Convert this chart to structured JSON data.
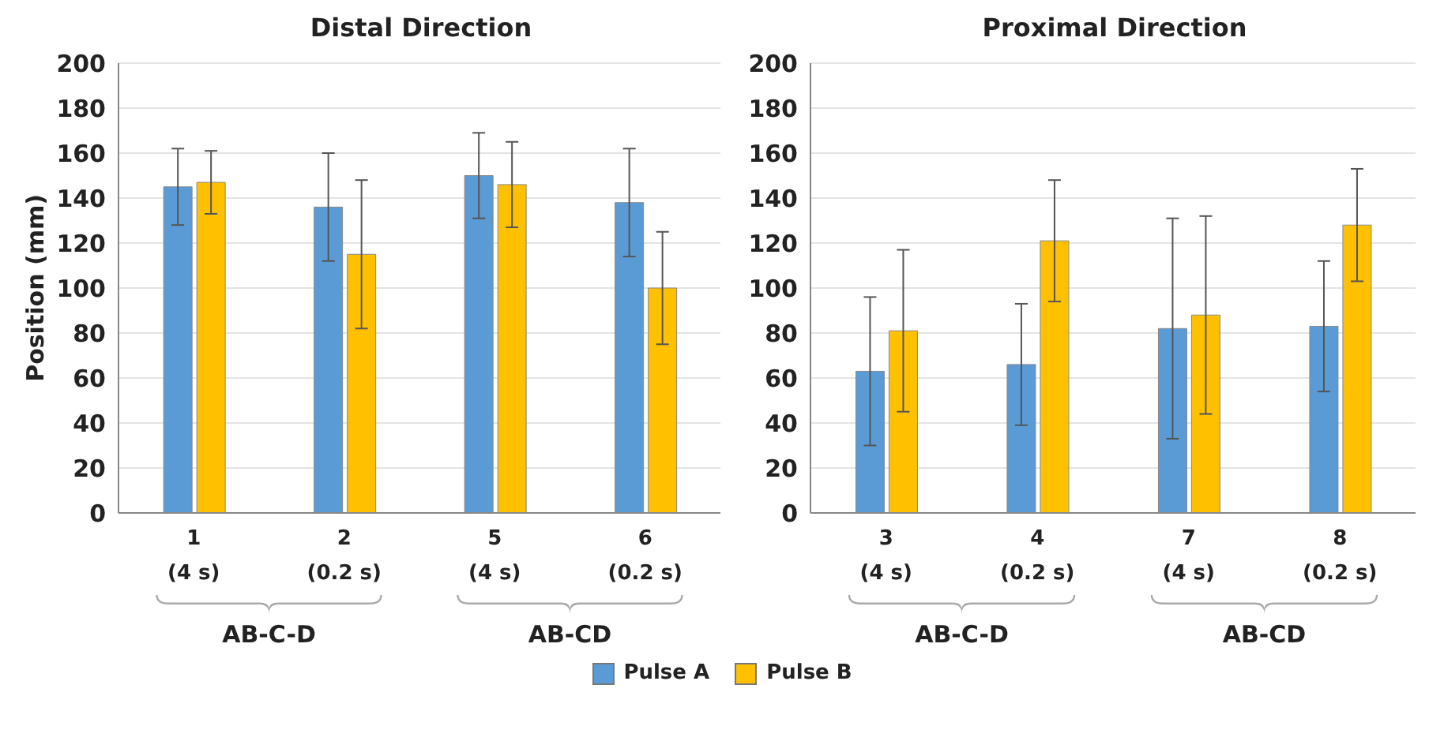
{
  "chart_data": [
    {
      "type": "bar",
      "title": "Distal Direction",
      "ylabel": "Position (mm)",
      "categories": [
        "1\n(4 s)",
        "2\n(0.2 s)",
        "5\n(4 s)",
        "6\n(0.2 s)"
      ],
      "series": [
        {
          "name": "Pulse A",
          "color": "#5b9bd5",
          "values": [
            145,
            136,
            150,
            138
          ],
          "errors": [
            17,
            24,
            19,
            24
          ]
        },
        {
          "name": "Pulse B",
          "color": "#ffc000",
          "values": [
            147,
            115,
            146,
            100
          ],
          "errors": [
            14,
            33,
            19,
            25
          ]
        }
      ],
      "ylim": [
        0,
        200
      ],
      "yticks": [
        0,
        20,
        40,
        60,
        80,
        100,
        120,
        140,
        160,
        180,
        200
      ],
      "grid": "y",
      "legend": "bottom",
      "annotations": [
        "AB-C-D",
        "AB-CD"
      ]
    },
    {
      "type": "bar",
      "title": "Proximal Direction",
      "categories": [
        "3\n(4 s)",
        "4\n(0.2 s)",
        "7\n(4 s)",
        "8\n(0.2 s)"
      ],
      "series": [
        {
          "name": "Pulse A",
          "color": "#5b9bd5",
          "values": [
            63,
            66,
            82,
            83
          ],
          "errors": [
            33,
            27,
            49,
            29
          ]
        },
        {
          "name": "Pulse B",
          "color": "#ffc000",
          "values": [
            81,
            121,
            88,
            128
          ],
          "errors": [
            36,
            27,
            44,
            25
          ]
        }
      ],
      "ylim": [
        0,
        200
      ],
      "yticks": [
        0,
        20,
        40,
        60,
        80,
        100,
        120,
        140,
        160,
        180,
        200
      ],
      "grid": "y",
      "legend": "bottom",
      "annotations": [
        "AB-C-D",
        "AB-CD"
      ]
    }
  ]
}
